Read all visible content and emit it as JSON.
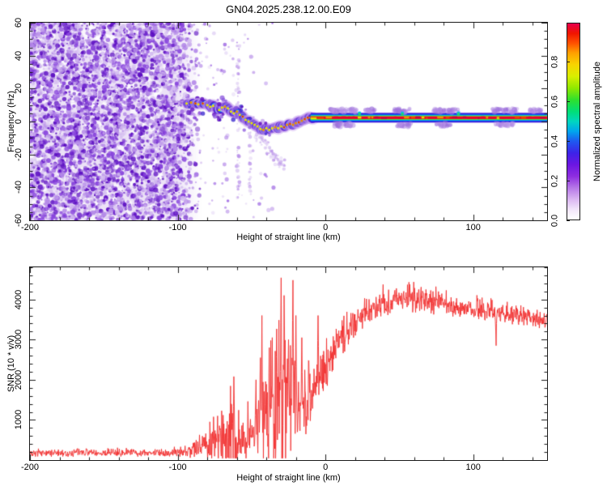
{
  "title": "GN04.2025.238.12.00.E09",
  "chart_data": [
    {
      "type": "heatmap",
      "name": "doppler-spectrogram",
      "title": "GN04.2025.238.12.00.E09",
      "xlabel": "Height of straight line (km)",
      "ylabel": "Frequency (Hz)",
      "xlim": [
        -200,
        150
      ],
      "ylim": [
        -60,
        60
      ],
      "xticks": [
        -200,
        -100,
        0,
        100
      ],
      "xtick_labels": [
        "-200",
        "-100",
        "0",
        "100"
      ],
      "xtick_minor_step": 20,
      "yticks": [
        60,
        40,
        20,
        0,
        -20,
        -40,
        -60
      ],
      "ytick_labels": [
        "60",
        "40",
        "20",
        "0",
        "-20",
        "-40",
        "-60"
      ],
      "ytick_minor_step": 5,
      "grid": false,
      "colorbar": {
        "label": "Normalized spectral amplitude",
        "ticks": [
          0.0,
          0.2,
          0.4,
          0.6,
          0.8
        ],
        "tick_labels": [
          "0.0",
          "0.2",
          "0.4",
          "0.6",
          "0.8"
        ],
        "range": [
          0,
          1
        ],
        "stops": [
          [
            0.0,
            "#ffffff"
          ],
          [
            0.05,
            "#f2e6fb"
          ],
          [
            0.1,
            "#dcb9f2"
          ],
          [
            0.16,
            "#b779e8"
          ],
          [
            0.22,
            "#8e2ee0"
          ],
          [
            0.28,
            "#6c16e2"
          ],
          [
            0.34,
            "#3d23e8"
          ],
          [
            0.4,
            "#1e5af0"
          ],
          [
            0.45,
            "#00a6ee"
          ],
          [
            0.5,
            "#00d6c0"
          ],
          [
            0.55,
            "#00dE78"
          ],
          [
            0.61,
            "#2ee02e"
          ],
          [
            0.67,
            "#8fe800"
          ],
          [
            0.73,
            "#d8ee00"
          ],
          [
            0.79,
            "#f8d400"
          ],
          [
            0.85,
            "#ffa000"
          ],
          [
            0.9,
            "#ff5000"
          ],
          [
            0.95,
            "#f01400"
          ],
          [
            1.0,
            "#e8004c"
          ]
        ]
      },
      "noise_region": {
        "comment": "dense purple speckle noise filling full frequency band",
        "x_from": -200,
        "x_full_until": -103,
        "x_fade_to": -84,
        "palette": [
          "#5c0ec2",
          "#8743dc",
          "#b58be8",
          "#d3bcf0"
        ],
        "background_wash": "#ece2f7"
      },
      "sparse_speckle": {
        "x_from": -100,
        "x_to": -35
      },
      "vertical_streaks": [
        {
          "km": -59,
          "hz_from": -48,
          "hz_to": 46
        },
        {
          "km": -51,
          "hz_from": -45,
          "hz_to": -6
        }
      ],
      "fan": {
        "km0": -48,
        "hz0": -7,
        "km1": -29,
        "hz1": -27
      },
      "trace": [
        [
          -94,
          11,
          0.75
        ],
        [
          -91,
          11.5,
          0.9
        ],
        [
          -88,
          11,
          0.95
        ],
        [
          -86,
          10.5,
          0.7
        ],
        [
          -83,
          11,
          0.95
        ],
        [
          -80,
          10,
          0.8
        ],
        [
          -78,
          9,
          0.6
        ],
        [
          -76,
          9.5,
          0.7
        ],
        [
          -74,
          8,
          0.55
        ],
        [
          -72,
          7,
          0.65
        ],
        [
          -70,
          8.5,
          0.8
        ],
        [
          -68,
          9,
          0.9
        ],
        [
          -66,
          8,
          0.7
        ],
        [
          -64,
          6,
          0.6
        ],
        [
          -62,
          5,
          0.8
        ],
        [
          -60,
          6,
          0.92
        ],
        [
          -58,
          4,
          0.7
        ],
        [
          -56,
          3,
          0.95
        ],
        [
          -54,
          1,
          0.7
        ],
        [
          -52,
          0,
          0.6
        ],
        [
          -50,
          -1,
          0.7
        ],
        [
          -48,
          -2,
          0.8
        ],
        [
          -46,
          -3,
          0.7
        ],
        [
          -44,
          -4.5,
          0.8
        ],
        [
          -42,
          -5,
          0.9
        ],
        [
          -40,
          -4,
          0.7
        ],
        [
          -38,
          -5,
          0.62
        ],
        [
          -36,
          -4,
          0.8
        ],
        [
          -34,
          -3.5,
          0.92
        ],
        [
          -32,
          -4,
          0.7
        ],
        [
          -30,
          -3,
          0.82
        ],
        [
          -28,
          -3.5,
          0.95
        ],
        [
          -26,
          -2,
          0.85
        ],
        [
          -24,
          -1.5,
          0.95
        ],
        [
          -22,
          -2,
          0.85
        ],
        [
          -20,
          -1,
          0.9
        ],
        [
          -18,
          -0.5,
          0.95
        ],
        [
          -16,
          0.5,
          0.9
        ],
        [
          -14,
          1.5,
          0.95
        ],
        [
          -12,
          2.3,
          0.98
        ],
        [
          -10,
          2.3,
          1.0
        ],
        [
          -8,
          2.4,
          1.0
        ]
      ],
      "solid_line": {
        "x_from": -10,
        "x_to": 150,
        "freq": 2.3,
        "core_color": "#e80030",
        "band_colors": [
          "#4418d8",
          "#1540f0",
          "#00c0e8",
          "#22d448",
          "#a8e800"
        ]
      },
      "fuzz_above": [
        [
          3,
          22
        ],
        [
          27,
          34
        ],
        [
          46,
          57
        ],
        [
          73,
          90
        ],
        [
          112,
          130
        ],
        [
          138,
          146
        ]
      ],
      "fuzz_below": [
        [
          5,
          20
        ],
        [
          48,
          58
        ],
        [
          75,
          85
        ],
        [
          115,
          127
        ]
      ],
      "cyan_peaks": [
        23,
        52,
        90
      ]
    },
    {
      "type": "line",
      "name": "snr-profile",
      "xlabel": "Height of straight line (km)",
      "ylabel": "SNR (10 * v/v)",
      "xlim": [
        -200,
        150
      ],
      "ylim": [
        0,
        4800
      ],
      "xticks": [
        -200,
        -100,
        0,
        100
      ],
      "xtick_labels": [
        "-200",
        "-100",
        "0",
        "100"
      ],
      "xtick_minor_step": 20,
      "yticks": [
        1000,
        2000,
        3000,
        4000
      ],
      "ytick_labels": [
        "1000",
        "2000",
        "3000",
        "4000"
      ],
      "ytick_minor_step": 200,
      "grid": false,
      "line_color": "#f23030",
      "envelope": [
        [
          -200,
          175,
          110
        ],
        [
          -160,
          175,
          110
        ],
        [
          -130,
          180,
          115
        ],
        [
          -110,
          185,
          120
        ],
        [
          -100,
          195,
          135
        ],
        [
          -95,
          215,
          170
        ],
        [
          -90,
          245,
          270
        ],
        [
          -85,
          285,
          390
        ],
        [
          -80,
          340,
          520
        ],
        [
          -76,
          430,
          720
        ],
        [
          -72,
          530,
          920
        ],
        [
          -68,
          610,
          1020
        ],
        [
          -64,
          690,
          1160
        ],
        [
          -61,
          750,
          1260
        ],
        [
          -58,
          560,
          800
        ],
        [
          -55,
          430,
          550
        ],
        [
          -52,
          570,
          860
        ],
        [
          -49,
          520,
          700
        ],
        [
          -47,
          700,
          1100
        ],
        [
          -45,
          850,
          1450
        ],
        [
          -43,
          1000,
          1900
        ],
        [
          -41,
          1150,
          2200
        ],
        [
          -39,
          1100,
          2000
        ],
        [
          -37,
          1050,
          1800
        ],
        [
          -35,
          1250,
          2000
        ],
        [
          -33,
          1500,
          2300
        ],
        [
          -30,
          1700,
          2600
        ],
        [
          -27,
          1600,
          2200
        ],
        [
          -24,
          1500,
          1800
        ],
        [
          -21,
          1400,
          1400
        ],
        [
          -18,
          1250,
          1100
        ],
        [
          -15,
          1400,
          1000
        ],
        [
          -12,
          1500,
          950
        ],
        [
          -9,
          1700,
          900
        ],
        [
          -6,
          1900,
          850
        ],
        [
          -3,
          2100,
          800
        ],
        [
          0,
          2350,
          750
        ],
        [
          4,
          2650,
          680
        ],
        [
          8,
          2900,
          640
        ],
        [
          12,
          3100,
          600
        ],
        [
          16,
          3300,
          560
        ],
        [
          20,
          3450,
          520
        ],
        [
          25,
          3620,
          500
        ],
        [
          30,
          3760,
          460
        ],
        [
          35,
          3850,
          440
        ],
        [
          40,
          3940,
          420
        ],
        [
          45,
          3990,
          410
        ],
        [
          50,
          4020,
          400
        ],
        [
          55,
          4000,
          390
        ],
        [
          60,
          3990,
          390
        ],
        [
          65,
          3960,
          380
        ],
        [
          70,
          3940,
          380
        ],
        [
          75,
          3910,
          370
        ],
        [
          80,
          3880,
          360
        ],
        [
          85,
          3850,
          360
        ],
        [
          90,
          3830,
          350
        ],
        [
          95,
          3800,
          350
        ],
        [
          100,
          3780,
          340
        ],
        [
          105,
          3750,
          340
        ],
        [
          110,
          3720,
          340
        ],
        [
          115,
          3660,
          420
        ],
        [
          120,
          3660,
          330
        ],
        [
          125,
          3640,
          330
        ],
        [
          130,
          3610,
          330
        ],
        [
          135,
          3580,
          330
        ],
        [
          140,
          3560,
          330
        ],
        [
          145,
          3520,
          340
        ],
        [
          150,
          3480,
          360
        ]
      ],
      "spikes": [
        [
          -62,
          2080
        ],
        [
          -52.5,
          1460
        ],
        [
          -47,
          2000
        ],
        [
          -44,
          2550
        ],
        [
          -43,
          3600
        ],
        [
          -38,
          2800
        ],
        [
          -36,
          3050
        ],
        [
          -30,
          4540
        ],
        [
          -28,
          4100
        ],
        [
          -25,
          3000
        ],
        [
          -22,
          4480
        ],
        [
          -20,
          3600
        ],
        [
          -16,
          3050
        ],
        [
          -5,
          3600
        ]
      ],
      "dips": [
        [
          115.5,
          2850
        ],
        [
          -19,
          700
        ]
      ]
    }
  ],
  "layout_text": {
    "note": "two stacked panels sharing the same height axis"
  }
}
